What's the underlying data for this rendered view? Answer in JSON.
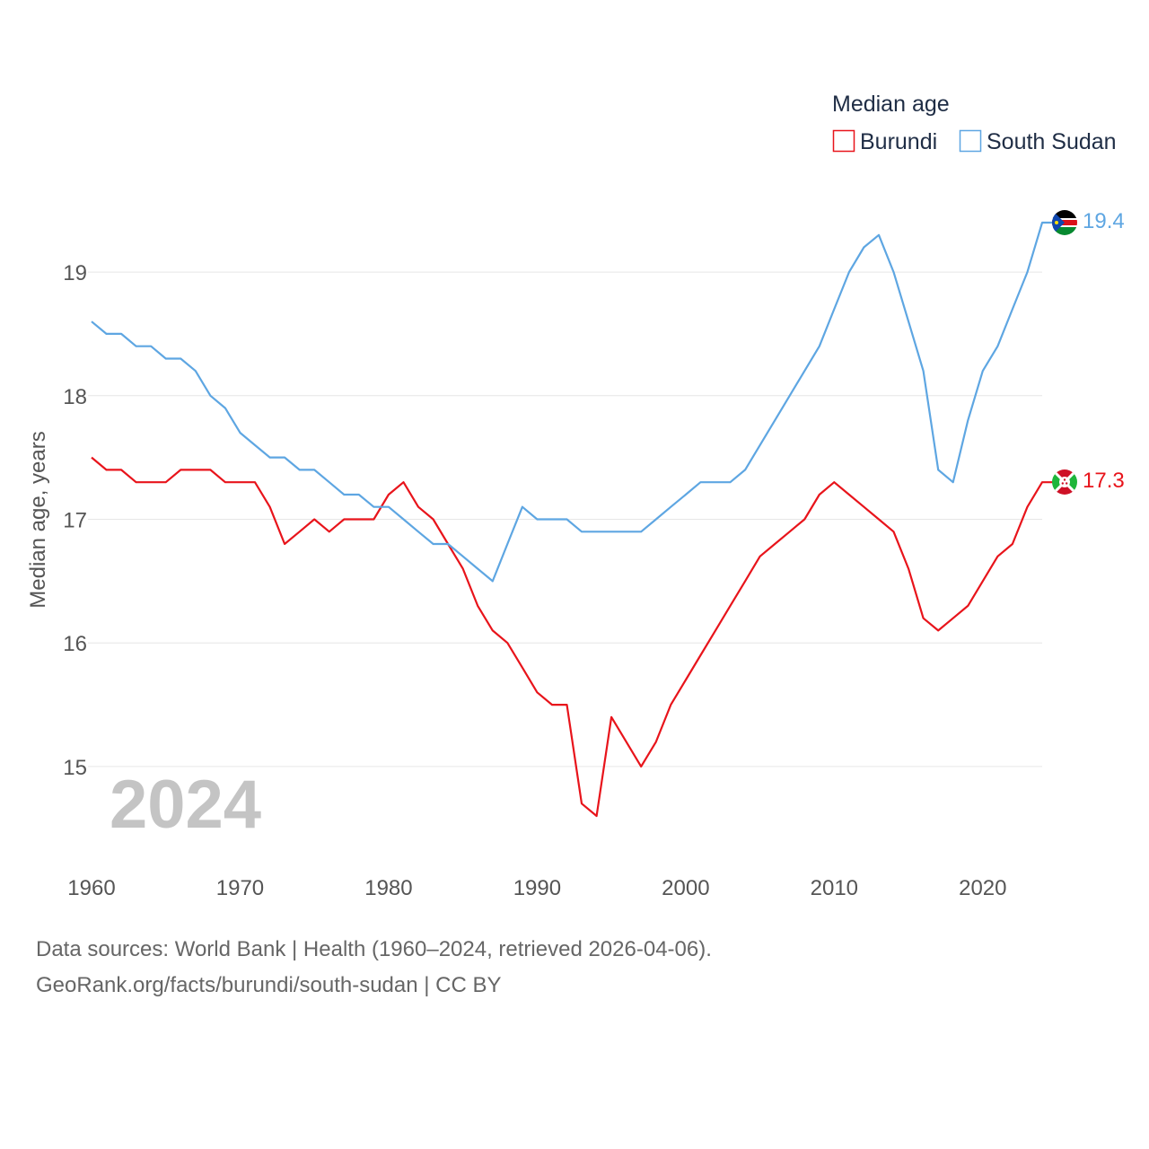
{
  "chart_data": {
    "type": "line",
    "legend_title": "Median age",
    "ylabel": "Median age, years",
    "xlabel": "",
    "year_label": "2024",
    "xlim": [
      1960,
      2024
    ],
    "ylim": [
      14.2,
      19.7
    ],
    "x_ticks": [
      1960,
      1970,
      1980,
      1990,
      2000,
      2010,
      2020
    ],
    "y_ticks": [
      15,
      16,
      17,
      18,
      19
    ],
    "grid": true,
    "legend_position": "top-right",
    "series": [
      {
        "name": "Burundi",
        "color": "#e8141b",
        "end_label": "17.3",
        "flag_icon": "burundi-flag-icon",
        "x": [
          1960,
          1961,
          1962,
          1963,
          1964,
          1965,
          1966,
          1967,
          1968,
          1969,
          1970,
          1971,
          1972,
          1973,
          1974,
          1975,
          1976,
          1977,
          1978,
          1979,
          1980,
          1981,
          1982,
          1983,
          1984,
          1985,
          1986,
          1987,
          1988,
          1989,
          1990,
          1991,
          1992,
          1993,
          1994,
          1995,
          1996,
          1997,
          1998,
          1999,
          2000,
          2001,
          2002,
          2003,
          2004,
          2005,
          2006,
          2007,
          2008,
          2009,
          2010,
          2011,
          2012,
          2013,
          2014,
          2015,
          2016,
          2017,
          2018,
          2019,
          2020,
          2021,
          2022,
          2023,
          2024
        ],
        "values": [
          17.5,
          17.4,
          17.4,
          17.3,
          17.3,
          17.3,
          17.4,
          17.4,
          17.4,
          17.3,
          17.3,
          17.3,
          17.1,
          16.8,
          16.9,
          17.0,
          16.9,
          17.0,
          17.0,
          17.0,
          17.2,
          17.3,
          17.1,
          17.0,
          16.8,
          16.6,
          16.3,
          16.1,
          16.0,
          15.8,
          15.6,
          15.5,
          15.5,
          14.7,
          14.6,
          15.4,
          15.2,
          15.0,
          15.2,
          15.5,
          15.7,
          15.9,
          16.1,
          16.3,
          16.5,
          16.7,
          16.8,
          16.9,
          17.0,
          17.2,
          17.3,
          17.2,
          17.1,
          17.0,
          16.9,
          16.6,
          16.2,
          16.1,
          16.2,
          16.3,
          16.5,
          16.7,
          16.8,
          17.1,
          17.3
        ]
      },
      {
        "name": "South Sudan",
        "color": "#5ea6e2",
        "end_label": "19.4",
        "flag_icon": "south-sudan-flag-icon",
        "x": [
          1960,
          1961,
          1962,
          1963,
          1964,
          1965,
          1966,
          1967,
          1968,
          1969,
          1970,
          1971,
          1972,
          1973,
          1974,
          1975,
          1976,
          1977,
          1978,
          1979,
          1980,
          1981,
          1982,
          1983,
          1984,
          1985,
          1986,
          1987,
          1988,
          1989,
          1990,
          1991,
          1992,
          1993,
          1994,
          1995,
          1996,
          1997,
          1998,
          1999,
          2000,
          2001,
          2002,
          2003,
          2004,
          2005,
          2006,
          2007,
          2008,
          2009,
          2010,
          2011,
          2012,
          2013,
          2014,
          2015,
          2016,
          2017,
          2018,
          2019,
          2020,
          2021,
          2022,
          2023,
          2024
        ],
        "values": [
          18.6,
          18.5,
          18.5,
          18.4,
          18.4,
          18.3,
          18.3,
          18.2,
          18.0,
          17.9,
          17.7,
          17.6,
          17.5,
          17.5,
          17.4,
          17.4,
          17.3,
          17.2,
          17.2,
          17.1,
          17.1,
          17.0,
          16.9,
          16.8,
          16.8,
          16.7,
          16.6,
          16.5,
          16.8,
          17.1,
          17.0,
          17.0,
          17.0,
          16.9,
          16.9,
          16.9,
          16.9,
          16.9,
          17.0,
          17.1,
          17.2,
          17.3,
          17.3,
          17.3,
          17.4,
          17.6,
          17.8,
          18.0,
          18.2,
          18.4,
          18.7,
          19.0,
          19.2,
          19.3,
          19.0,
          18.6,
          18.2,
          17.4,
          17.3,
          17.8,
          18.2,
          18.4,
          18.7,
          19.0,
          19.4
        ]
      }
    ]
  },
  "footer": {
    "line1": "Data sources: World Bank | Health (1960–2024, retrieved 2026-04-06).",
    "line2": "GeoRank.org/facts/burundi/south-sudan | CC BY"
  }
}
